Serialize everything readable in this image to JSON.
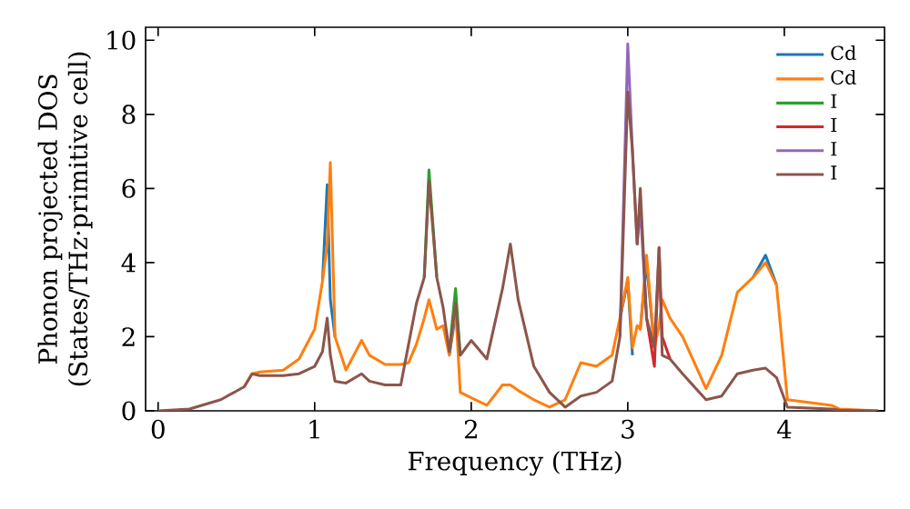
{
  "chart_data": {
    "type": "line",
    "xlabel": "Frequency (THz)",
    "ylabel": "Phonon projected DOS (States/THz·primitive cell)",
    "xlim": [
      -0.08,
      4.64
    ],
    "ylim": [
      0,
      10.35
    ],
    "xticks": [
      0,
      1,
      2,
      3,
      4
    ],
    "yticks": [
      0,
      2,
      4,
      6,
      8,
      10
    ],
    "legend": "top right",
    "grid": false,
    "marker": "none",
    "line_style": "solid",
    "x": [
      0,
      0.2,
      0.4,
      0.55,
      0.6,
      0.65,
      0.8,
      0.9,
      1.0,
      1.05,
      1.08,
      1.1,
      1.13,
      1.2,
      1.3,
      1.35,
      1.45,
      1.55,
      1.6,
      1.65,
      1.7,
      1.73,
      1.78,
      1.82,
      1.86,
      1.9,
      1.93,
      2.0,
      2.1,
      2.2,
      2.25,
      2.3,
      2.4,
      2.5,
      2.6,
      2.7,
      2.8,
      2.9,
      2.95,
      3.0,
      3.03,
      3.06,
      3.08,
      3.12,
      3.17,
      3.2,
      3.22,
      3.27,
      3.35,
      3.5,
      3.6,
      3.7,
      3.8,
      3.88,
      3.95,
      4.02,
      4.3,
      4.35,
      4.6
    ],
    "series": [
      {
        "name": "Cd",
        "color": "#1f77b4",
        "values": [
          null,
          null,
          null,
          null,
          null,
          null,
          null,
          null,
          null,
          3.5,
          6.1,
          3.0,
          2.0,
          null,
          null,
          null,
          null,
          null,
          null,
          null,
          null,
          null,
          null,
          null,
          1.5,
          2.6,
          null,
          null,
          null,
          null,
          null,
          null,
          null,
          null,
          null,
          null,
          null,
          null,
          2.5,
          3.5,
          1.5,
          null,
          2.2,
          4.0,
          1.7,
          null,
          null,
          null,
          null,
          null,
          null,
          null,
          3.6,
          4.2,
          3.4,
          null,
          null,
          null,
          null
        ]
      },
      {
        "name": "Cd",
        "color": "#ff7f0e",
        "values": [
          null,
          null,
          null,
          0.65,
          1.0,
          1.05,
          1.1,
          1.4,
          2.2,
          3.5,
          4.5,
          6.7,
          2.0,
          1.1,
          1.9,
          1.5,
          1.25,
          1.25,
          1.3,
          1.8,
          2.5,
          3.0,
          2.2,
          2.3,
          1.5,
          2.8,
          0.5,
          0.35,
          0.15,
          0.7,
          0.7,
          0.55,
          0.3,
          0.1,
          0.3,
          1.3,
          1.2,
          1.5,
          2.5,
          3.6,
          1.7,
          2.3,
          2.2,
          4.2,
          1.7,
          2.3,
          3.0,
          2.5,
          2.0,
          0.6,
          1.5,
          3.2,
          3.6,
          4.0,
          3.4,
          0.3,
          0.15,
          0.05,
          0
        ]
      },
      {
        "name": "I",
        "color": "#2ca02c",
        "values": [
          null,
          null,
          null,
          null,
          null,
          null,
          null,
          null,
          null,
          null,
          null,
          null,
          null,
          null,
          null,
          null,
          null,
          null,
          null,
          null,
          3.6,
          6.5,
          3.6,
          null,
          1.6,
          3.3,
          1.5,
          null,
          null,
          null,
          null,
          null,
          null,
          null,
          null,
          null,
          null,
          null,
          null,
          null,
          null,
          null,
          null,
          null,
          null,
          null,
          null,
          null,
          null,
          null,
          null,
          null,
          null,
          null,
          null,
          null,
          null,
          null,
          null
        ]
      },
      {
        "name": "I",
        "color": "#d62728",
        "values": [
          null,
          null,
          null,
          null,
          null,
          null,
          null,
          null,
          null,
          null,
          null,
          null,
          null,
          null,
          null,
          null,
          null,
          null,
          null,
          null,
          null,
          null,
          null,
          null,
          null,
          null,
          null,
          null,
          null,
          null,
          null,
          null,
          null,
          null,
          null,
          null,
          null,
          null,
          null,
          null,
          null,
          null,
          null,
          2.5,
          1.2,
          4.4,
          2.0,
          1.4,
          null,
          null,
          null,
          null,
          null,
          null,
          null,
          null,
          null,
          null,
          null
        ]
      },
      {
        "name": "I",
        "color": "#9467bd",
        "values": [
          null,
          null,
          null,
          null,
          null,
          null,
          null,
          null,
          null,
          null,
          null,
          null,
          null,
          null,
          null,
          null,
          null,
          null,
          null,
          null,
          null,
          null,
          null,
          null,
          null,
          null,
          null,
          null,
          null,
          null,
          null,
          null,
          null,
          null,
          null,
          null,
          null,
          null,
          2.0,
          9.9,
          7.0,
          4.5,
          5.5,
          2.5,
          null,
          null,
          null,
          null,
          null,
          null,
          null,
          null,
          null,
          null,
          null,
          null,
          null,
          null,
          null
        ]
      },
      {
        "name": "I",
        "color": "#8c564b",
        "values": [
          0,
          0.05,
          0.3,
          0.65,
          1.0,
          0.95,
          0.95,
          1.0,
          1.2,
          1.6,
          2.5,
          1.5,
          0.8,
          0.75,
          1.0,
          0.8,
          0.7,
          0.7,
          1.8,
          2.9,
          3.6,
          6.2,
          3.6,
          2.8,
          1.6,
          2.9,
          1.5,
          1.9,
          1.4,
          3.3,
          4.5,
          3.0,
          1.2,
          0.5,
          0.1,
          0.4,
          0.5,
          0.8,
          2.0,
          8.6,
          7.0,
          4.5,
          6.0,
          2.5,
          1.7,
          4.4,
          1.5,
          1.4,
          1.0,
          0.3,
          0.4,
          1.0,
          1.1,
          1.15,
          0.9,
          0.1,
          0.05,
          0.02,
          0
        ]
      }
    ]
  }
}
